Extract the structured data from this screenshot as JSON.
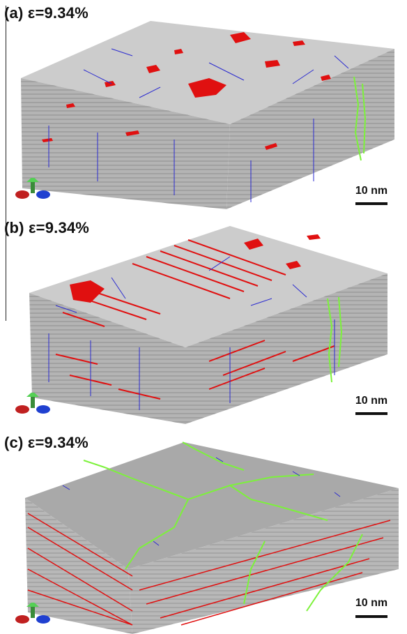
{
  "panels": [
    {
      "label": "(a) ε=9.34%",
      "scale_label": "10 nm"
    },
    {
      "label": "(b) ε=9.34%",
      "scale_label": "10 nm"
    },
    {
      "label": "(c) ε=9.34%",
      "scale_label": "10 nm"
    }
  ],
  "colors": {
    "matrix": "#c8c8c8",
    "matrix_dark": "#9a9a9a",
    "fault": "#e01010",
    "dislocation": "#2a2ad0",
    "grain_boundary": "#7cf23a"
  },
  "icons": [
    "xyz-axes-icon"
  ]
}
